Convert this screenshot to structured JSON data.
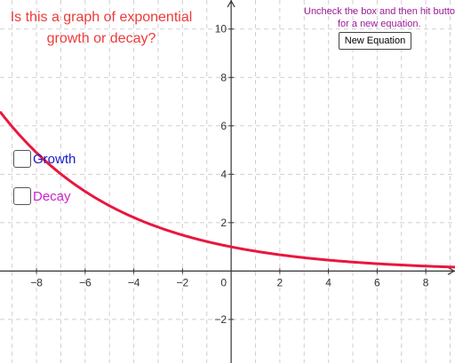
{
  "question": {
    "line1": "Is this a graph of exponential",
    "line2": "growth or decay?"
  },
  "instruction": {
    "line1": "Uncheck the box and then hit button",
    "line2": "for a new equation."
  },
  "new_equation_label": "New Equation",
  "checkboxes": [
    {
      "label": "Growth",
      "checked": false,
      "color": "#1a1acc"
    },
    {
      "label": "Decay",
      "checked": false,
      "color": "#cc22cc"
    }
  ],
  "chart_data": {
    "type": "line",
    "xlim": [
      -9.5,
      9.2
    ],
    "ylim": [
      -3.8,
      11.2
    ],
    "x_ticks": [
      -8,
      -6,
      -4,
      -2,
      2,
      4,
      6,
      8
    ],
    "y_ticks": [
      -2,
      2,
      4,
      6,
      8,
      10
    ],
    "origin_label": "0",
    "grid": true,
    "curve": {
      "equation": "y = 0.82^x",
      "base": 0.82,
      "color": "#e8173e"
    }
  }
}
